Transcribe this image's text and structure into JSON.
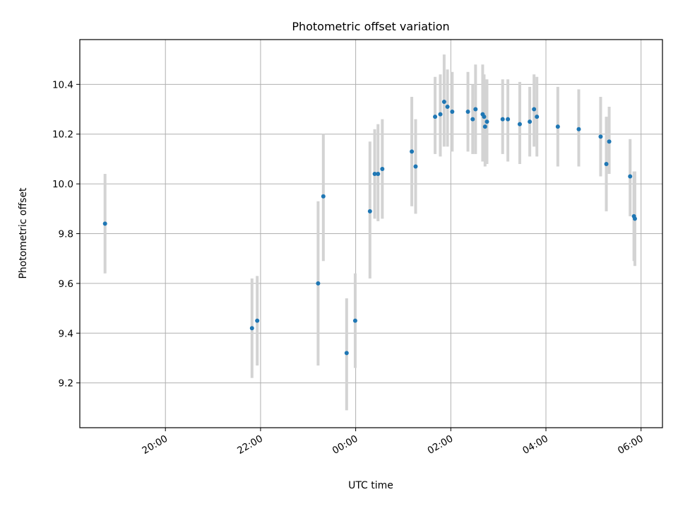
{
  "chart_data": {
    "type": "scatter",
    "title": "Photometric offset variation",
    "xlabel": "UTC time",
    "ylabel": "Photometric offset",
    "x_unit": "hours (UTC, continuing past midnight)",
    "xlim": [
      18.2,
      30.45
    ],
    "ylim": [
      9.02,
      10.58
    ],
    "grid": true,
    "x_ticks": [
      {
        "value": 20,
        "label": "20:00"
      },
      {
        "value": 22,
        "label": "22:00"
      },
      {
        "value": 24,
        "label": "00:00"
      },
      {
        "value": 26,
        "label": "02:00"
      },
      {
        "value": 28,
        "label": "04:00"
      },
      {
        "value": 30,
        "label": "06:00"
      }
    ],
    "y_ticks": [
      {
        "value": 9.2,
        "label": "9.2"
      },
      {
        "value": 9.4,
        "label": "9.4"
      },
      {
        "value": 9.6,
        "label": "9.6"
      },
      {
        "value": 9.8,
        "label": "9.8"
      },
      {
        "value": 10.0,
        "label": "10.0"
      },
      {
        "value": 10.2,
        "label": "10.2"
      },
      {
        "value": 10.4,
        "label": "10.4"
      }
    ],
    "colors": {
      "point": "#1f77b4",
      "errorbar": "#d3d3d3"
    },
    "points": [
      {
        "x": 18.73,
        "y": 9.84,
        "lo": 9.64,
        "hi": 10.04
      },
      {
        "x": 21.82,
        "y": 9.42,
        "lo": 9.22,
        "hi": 9.62
      },
      {
        "x": 21.93,
        "y": 9.45,
        "lo": 9.27,
        "hi": 9.63
      },
      {
        "x": 23.21,
        "y": 9.6,
        "lo": 9.27,
        "hi": 9.93
      },
      {
        "x": 23.32,
        "y": 9.95,
        "lo": 9.69,
        "hi": 10.2
      },
      {
        "x": 23.81,
        "y": 9.32,
        "lo": 9.09,
        "hi": 9.54
      },
      {
        "x": 23.99,
        "y": 9.45,
        "lo": 9.26,
        "hi": 9.64
      },
      {
        "x": 24.3,
        "y": 9.89,
        "lo": 9.62,
        "hi": 10.17
      },
      {
        "x": 24.4,
        "y": 10.04,
        "lo": 9.86,
        "hi": 10.22
      },
      {
        "x": 24.47,
        "y": 10.04,
        "lo": 9.85,
        "hi": 10.24
      },
      {
        "x": 24.56,
        "y": 10.06,
        "lo": 9.86,
        "hi": 10.26
      },
      {
        "x": 25.18,
        "y": 10.13,
        "lo": 9.91,
        "hi": 10.35
      },
      {
        "x": 25.26,
        "y": 10.07,
        "lo": 9.88,
        "hi": 10.26
      },
      {
        "x": 25.67,
        "y": 10.27,
        "lo": 10.12,
        "hi": 10.43
      },
      {
        "x": 25.78,
        "y": 10.28,
        "lo": 10.11,
        "hi": 10.44
      },
      {
        "x": 25.86,
        "y": 10.33,
        "lo": 10.15,
        "hi": 10.52
      },
      {
        "x": 25.93,
        "y": 10.31,
        "lo": 10.15,
        "hi": 10.46
      },
      {
        "x": 26.03,
        "y": 10.29,
        "lo": 10.13,
        "hi": 10.45
      },
      {
        "x": 26.36,
        "y": 10.29,
        "lo": 10.13,
        "hi": 10.45
      },
      {
        "x": 26.46,
        "y": 10.26,
        "lo": 10.12,
        "hi": 10.4
      },
      {
        "x": 26.52,
        "y": 10.3,
        "lo": 10.12,
        "hi": 10.48
      },
      {
        "x": 26.67,
        "y": 10.28,
        "lo": 10.09,
        "hi": 10.48
      },
      {
        "x": 26.7,
        "y": 10.27,
        "lo": 10.1,
        "hi": 10.44
      },
      {
        "x": 26.72,
        "y": 10.23,
        "lo": 10.07,
        "hi": 10.39
      },
      {
        "x": 26.76,
        "y": 10.25,
        "lo": 10.08,
        "hi": 10.42
      },
      {
        "x": 27.09,
        "y": 10.26,
        "lo": 10.12,
        "hi": 10.42
      },
      {
        "x": 27.2,
        "y": 10.26,
        "lo": 10.09,
        "hi": 10.42
      },
      {
        "x": 27.45,
        "y": 10.24,
        "lo": 10.08,
        "hi": 10.41
      },
      {
        "x": 27.66,
        "y": 10.25,
        "lo": 10.11,
        "hi": 10.39
      },
      {
        "x": 27.75,
        "y": 10.3,
        "lo": 10.15,
        "hi": 10.44
      },
      {
        "x": 27.81,
        "y": 10.27,
        "lo": 10.11,
        "hi": 10.43
      },
      {
        "x": 28.25,
        "y": 10.23,
        "lo": 10.07,
        "hi": 10.39
      },
      {
        "x": 28.69,
        "y": 10.22,
        "lo": 10.07,
        "hi": 10.38
      },
      {
        "x": 29.15,
        "y": 10.19,
        "lo": 10.03,
        "hi": 10.35
      },
      {
        "x": 29.27,
        "y": 10.08,
        "lo": 9.89,
        "hi": 10.27
      },
      {
        "x": 29.33,
        "y": 10.17,
        "lo": 10.04,
        "hi": 10.31
      },
      {
        "x": 29.77,
        "y": 10.03,
        "lo": 9.87,
        "hi": 10.18
      },
      {
        "x": 29.85,
        "y": 9.87,
        "lo": 9.69,
        "hi": 10.05
      },
      {
        "x": 29.87,
        "y": 9.86,
        "lo": 9.67,
        "hi": 10.05
      }
    ]
  }
}
